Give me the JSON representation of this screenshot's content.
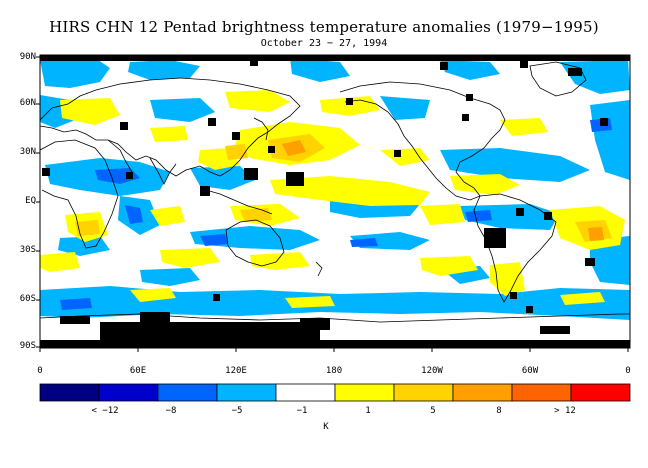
{
  "title": "HIRS CHN 12 Pentad brightness temperature anomalies (1979−1995)",
  "subtitle": "October 23 − 27, 1994",
  "lat_labels": [
    "90N",
    "60N",
    "30N",
    "EQ",
    "30S",
    "60S",
    "90S"
  ],
  "lon_labels": [
    "0",
    "60E",
    "120E",
    "180",
    "120W",
    "60W",
    "0"
  ],
  "colorbar": {
    "colors": [
      "#000080",
      "#0000cd",
      "#0064ff",
      "#00b4ff",
      "#ffffff",
      "#ffff00",
      "#ffd200",
      "#ffa000",
      "#ff6400",
      "#ff0000"
    ],
    "labels": [
      "< −12",
      "−8",
      "−5",
      "−1",
      "1",
      "5",
      "8",
      "> 12"
    ],
    "unit": "K"
  },
  "map_colors": {
    "blue": "#00b4ff",
    "deep_blue": "#0064ff",
    "yellow": "#ffff00",
    "orange": "#ffd200",
    "dark_orange": "#ffa000",
    "missing": "#000000"
  }
}
